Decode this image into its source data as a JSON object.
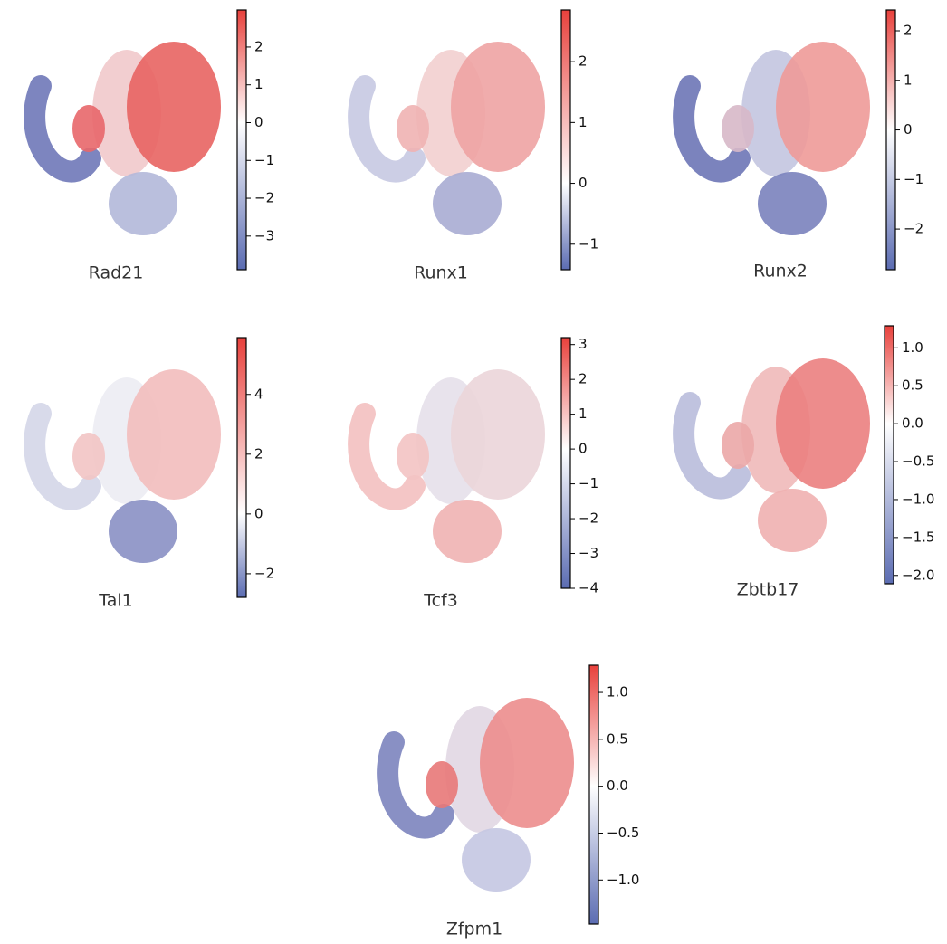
{
  "chart_data": [
    {
      "type": "embedding",
      "title": "Rad21",
      "colorbar_lim": [
        -3.89,
        2.98
      ],
      "colorbar_ticks": [
        {
          "value": -3,
          "label": "−3"
        },
        {
          "value": -2,
          "label": "−2"
        },
        {
          "value": -1,
          "label": "−1"
        },
        0,
        1,
        2
      ],
      "colormap": [
        "#5b6cb2",
        "#ffffff",
        "#e8413c"
      ]
    },
    {
      "type": "embedding",
      "title": "Runx1",
      "colorbar_lim": [
        -1.42,
        2.85
      ],
      "colorbar_ticks": [
        {
          "value": -1,
          "label": "−1"
        },
        0,
        1,
        2
      ],
      "colormap": [
        "#5b6cb2",
        "#ffffff",
        "#e8413c"
      ]
    },
    {
      "type": "embedding",
      "title": "Runx2",
      "colorbar_lim": [
        -2.82,
        2.42
      ],
      "colorbar_ticks": [
        {
          "value": -2,
          "label": "−2"
        },
        {
          "value": -1,
          "label": "−1"
        },
        0,
        1,
        2
      ],
      "colormap": [
        "#5b6cb2",
        "#ffffff",
        "#e8413c"
      ]
    },
    {
      "type": "embedding",
      "title": "Tal1",
      "colorbar_lim": [
        -2.79,
        5.9
      ],
      "colorbar_ticks": [
        {
          "value": -2,
          "label": "−2"
        },
        0,
        2,
        4
      ],
      "colormap": [
        "#5b6cb2",
        "#ffffff",
        "#e8413c"
      ]
    },
    {
      "type": "embedding",
      "title": "Tcf3",
      "colorbar_lim": [
        -4,
        3.2
      ],
      "colorbar_ticks": [
        {
          "value": -4,
          "label": "−4"
        },
        {
          "value": -3,
          "label": "−3"
        },
        {
          "value": -2,
          "label": "−2"
        },
        {
          "value": -1,
          "label": "−1"
        },
        0,
        1,
        2,
        3
      ],
      "colormap": [
        "#5b6cb2",
        "#ffffff",
        "#e8413c"
      ]
    },
    {
      "type": "embedding",
      "title": "Zbtb17",
      "colorbar_lim": [
        -2.11,
        1.29
      ],
      "colorbar_ticks": [
        {
          "value": -2,
          "label": "−2.0"
        },
        {
          "value": -1.5,
          "label": "−1.5"
        },
        {
          "value": -1,
          "label": "−1.0"
        },
        {
          "value": -0.5,
          "label": "−0.5"
        },
        {
          "value": 0,
          "label": "0.0"
        },
        0.5,
        {
          "value": 1,
          "label": "1.0"
        }
      ],
      "colormap": [
        "#5b6cb2",
        "#ffffff",
        "#e8413c"
      ]
    },
    {
      "type": "embedding",
      "title": "Zfpm1",
      "colorbar_lim": [
        -1.47,
        1.29
      ],
      "colorbar_ticks": [
        {
          "value": -1,
          "label": "−1.0"
        },
        {
          "value": -0.5,
          "label": "−0.5"
        },
        {
          "value": 0,
          "label": "0.0"
        },
        0.5,
        {
          "value": 1,
          "label": "1.0"
        }
      ],
      "colormap": [
        "#5b6cb2",
        "#ffffff",
        "#e8413c"
      ]
    }
  ]
}
